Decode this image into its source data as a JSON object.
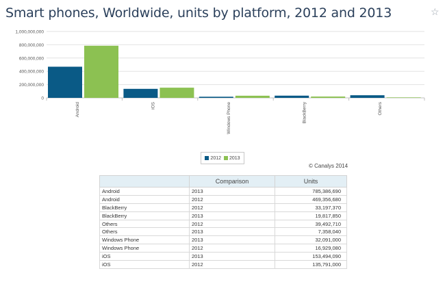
{
  "title": "Smart phones, Worldwide, units by platform, 2012 and 2013",
  "credit": "© Canalys 2014",
  "chart_data": {
    "type": "bar",
    "categories": [
      "Android",
      "iOS",
      "Windows Phone",
      "BlackBerry",
      "Others"
    ],
    "series": [
      {
        "name": "2012",
        "color": "#0a5a86",
        "values": [
          469356680,
          135791000,
          16929080,
          33197370,
          39492710
        ]
      },
      {
        "name": "2013",
        "color": "#8cc152",
        "values": [
          785386690,
          153494090,
          32091000,
          19817850,
          7358040
        ]
      }
    ],
    "yticks": [
      "0",
      "200,000,000",
      "400,000,000",
      "600,000,000",
      "800,000,000",
      "1,000,000,000"
    ],
    "ylim": [
      0,
      1000000000
    ],
    "grid": true,
    "legend_position": "bottom-center"
  },
  "table": {
    "headers": [
      "",
      "Comparison",
      "Units"
    ],
    "rows": [
      [
        "Android",
        "2013",
        "785,386,690"
      ],
      [
        "Android",
        "2012",
        "469,356,680"
      ],
      [
        "BlackBerry",
        "2012",
        "33,197,370"
      ],
      [
        "BlackBerry",
        "2013",
        "19,817,850"
      ],
      [
        "Others",
        "2012",
        "39,492,710"
      ],
      [
        "Others",
        "2013",
        "7,358,040"
      ],
      [
        "Windows Phone",
        "2013",
        "32,091,000"
      ],
      [
        "Windows Phone",
        "2012",
        "16,929,080"
      ],
      [
        "iOS",
        "2013",
        "153,494,090"
      ],
      [
        "iOS",
        "2012",
        "135,791,000"
      ]
    ]
  },
  "icons": {
    "favorite": "star-outline-icon"
  }
}
